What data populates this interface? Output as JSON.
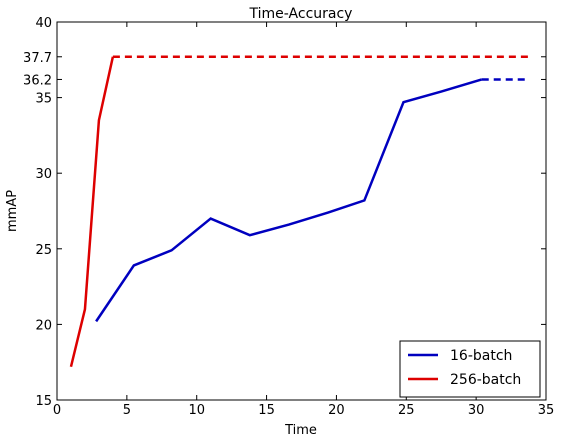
{
  "chart_data": {
    "type": "line",
    "title": "Time-Accuracy",
    "xlabel": "Time",
    "ylabel": "mmAP",
    "xlim": [
      0,
      35
    ],
    "ylim": [
      15,
      40
    ],
    "xticks": [
      0,
      5,
      10,
      15,
      20,
      25,
      30,
      35
    ],
    "yticks": [
      15,
      20,
      25,
      30,
      35,
      36.2,
      37.7,
      40
    ],
    "ytick_labels": [
      "15",
      "20",
      "25",
      "30",
      "35",
      "36.2",
      "37.7",
      "40"
    ],
    "grid": false,
    "legend_position": "bottom-right",
    "series": [
      {
        "name": "16-batch",
        "color": "#0000bf",
        "line_style": "solid",
        "x": [
          2.8,
          5.5,
          8.2,
          11.0,
          13.8,
          16.6,
          19.4,
          22.0,
          24.8,
          27.5,
          30.4
        ],
        "y": [
          20.2,
          23.9,
          24.9,
          27.0,
          25.9,
          26.6,
          27.4,
          28.2,
          34.7,
          35.4,
          36.2
        ],
        "extension": {
          "x": [
            30.4,
            33.8
          ],
          "y": [
            36.2,
            36.2
          ],
          "line_style": "dashed"
        }
      },
      {
        "name": "256-batch",
        "color": "#dd0000",
        "line_style": "solid",
        "x": [
          1.0,
          2.0,
          3.0,
          4.0
        ],
        "y": [
          17.2,
          21.0,
          33.5,
          37.7
        ],
        "extension": {
          "x": [
            4.0,
            33.8
          ],
          "y": [
            37.7,
            37.7
          ],
          "line_style": "dashed"
        }
      }
    ]
  }
}
